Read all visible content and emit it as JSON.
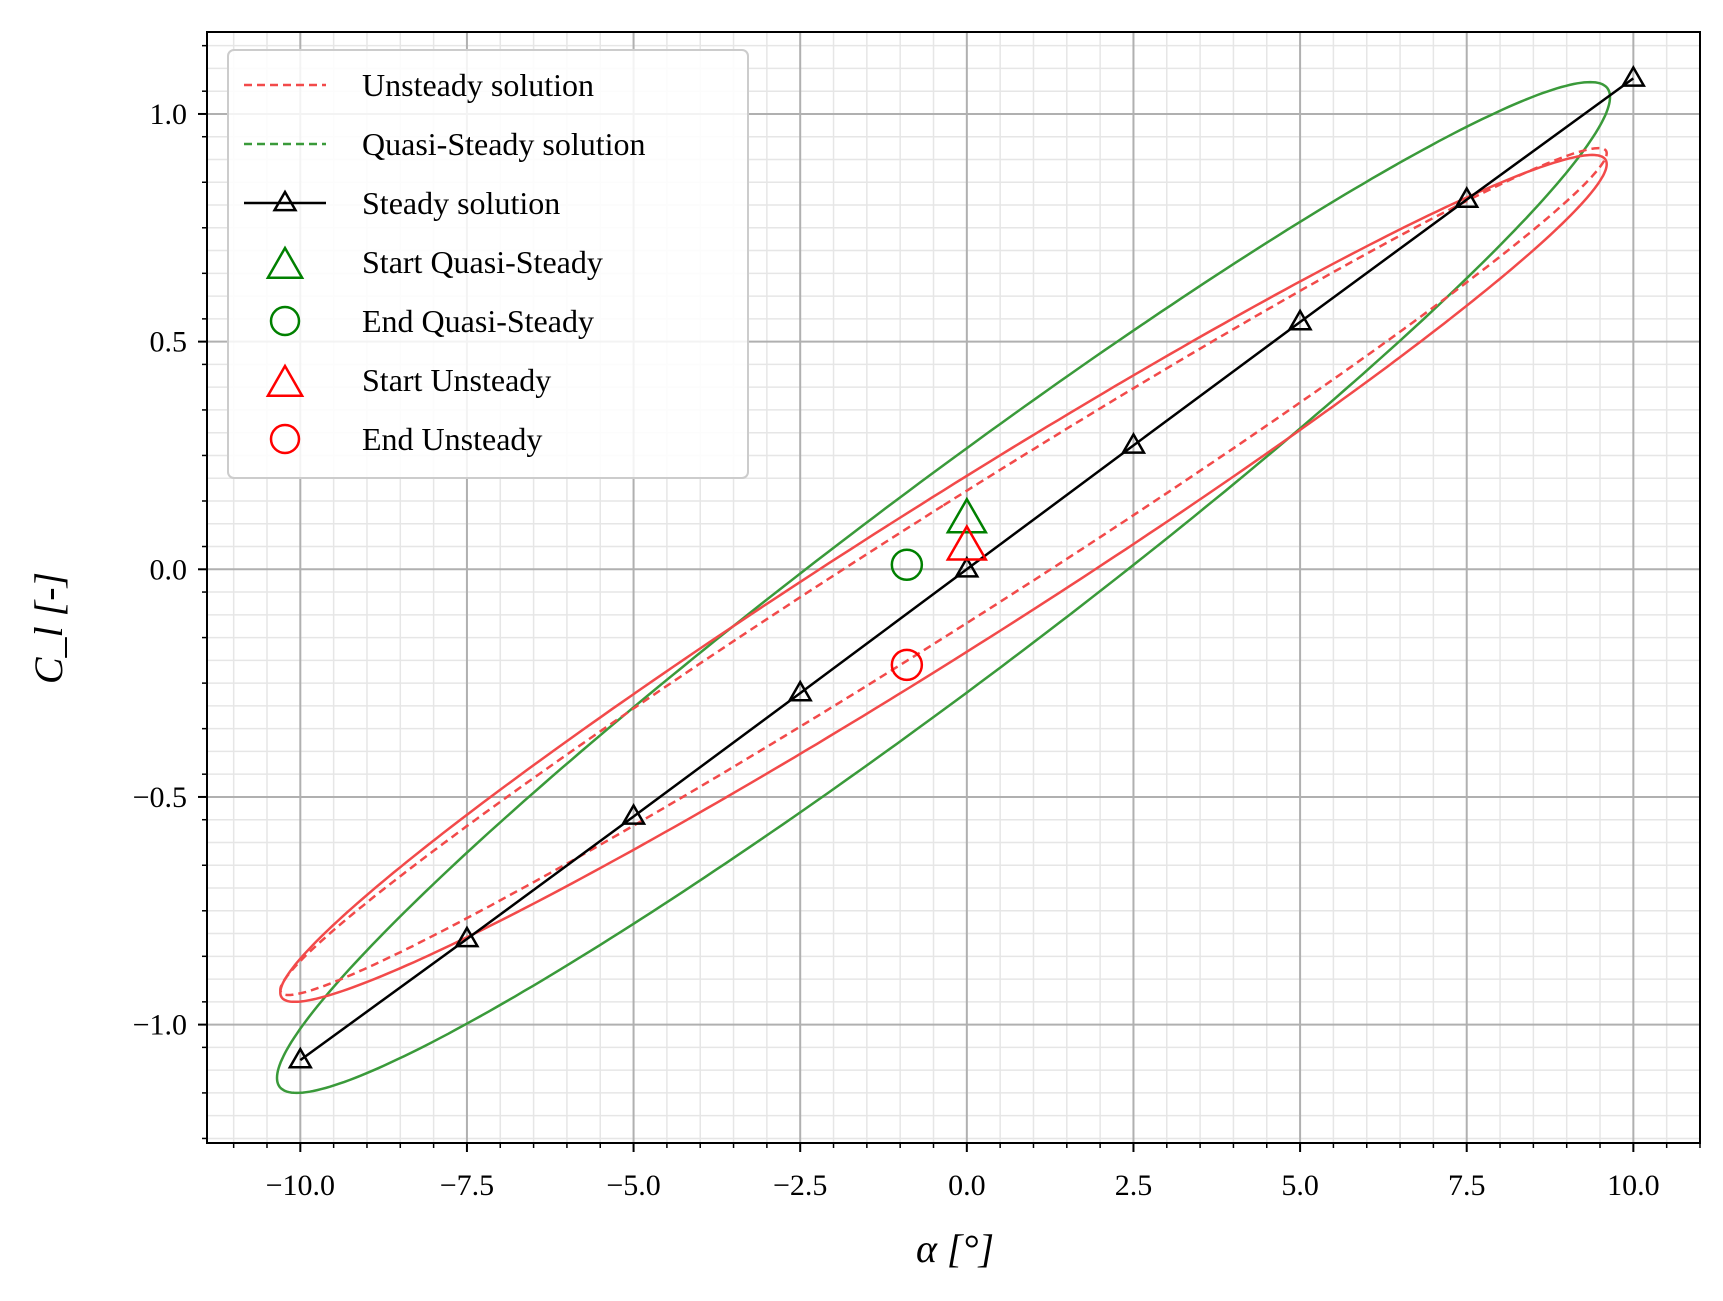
{
  "chart_data": {
    "type": "line",
    "title": "",
    "xlabel": "α [°]",
    "ylabel": "C_l [-]",
    "xlim": [
      -11.4,
      11.0
    ],
    "ylim": [
      -1.26,
      1.18
    ],
    "x_ticks": [
      -10.0,
      -7.5,
      -5.0,
      -2.5,
      0.0,
      2.5,
      5.0,
      7.5,
      10.0
    ],
    "x_tick_labels": [
      "−10.0",
      "−7.5",
      "−5.0",
      "−2.5",
      "0.0",
      "2.5",
      "5.0",
      "7.5",
      "10.0"
    ],
    "y_ticks": [
      -1.0,
      -0.5,
      0.0,
      0.5,
      1.0
    ],
    "y_tick_labels": [
      "−1.0",
      "−0.5",
      "0.0",
      "0.5",
      "1.0"
    ],
    "grid": "major and minor",
    "legend_position": "upper left",
    "series": [
      {
        "name": "Unsteady solution",
        "style": "dashed",
        "color": "#f24a4a",
        "loop": {
          "alpha_center": -0.35,
          "alpha_amplitude": 9.95,
          "cl_center": -0.02,
          "cl_amplitude": 0.93,
          "phase_lag_deg": 12
        },
        "x": [
          0.0,
          2.5,
          5.0,
          7.5,
          9.5,
          9.6,
          7.5,
          5.0,
          2.5,
          0.0,
          -2.5,
          -5.0,
          -7.5,
          -10.0,
          -10.3,
          -7.5,
          -5.0,
          -2.5,
          -0.9
        ],
        "y": [
          0.06,
          0.24,
          0.53,
          0.78,
          0.92,
          0.88,
          0.63,
          0.36,
          0.09,
          -0.11,
          -0.28,
          -0.36,
          -0.59,
          -0.86,
          -0.95,
          -0.78,
          -0.56,
          -0.36,
          -0.21
        ]
      },
      {
        "name": "Quasi-Steady solution",
        "style": "dashed",
        "color": "#3a9a3a",
        "loop": {
          "alpha_center": -0.35,
          "alpha_amplitude": 10.0,
          "cl_center": -0.04,
          "cl_amplitude": 1.11,
          "phase_lag_deg": 14
        },
        "x": [
          0.0,
          2.5,
          5.0,
          7.5,
          9.6,
          9.5,
          7.5,
          5.0,
          2.5,
          0.0,
          -2.5,
          -5.0,
          -7.5,
          -10.0,
          -10.4,
          -7.5,
          -5.0,
          -2.5,
          -0.9
        ],
        "y": [
          0.12,
          0.38,
          0.64,
          0.9,
          1.07,
          1.03,
          0.74,
          0.45,
          0.15,
          -0.11,
          -0.38,
          -0.66,
          -0.91,
          -1.1,
          -1.15,
          -0.9,
          -0.63,
          -0.37,
          0.01
        ]
      },
      {
        "name": "Steady solution",
        "style": "solid",
        "marker": "triangle",
        "color": "#000000",
        "x": [
          -10.0,
          -7.5,
          -5.0,
          -2.5,
          0.0,
          2.5,
          5.0,
          7.5,
          10.0
        ],
        "y": [
          -1.078,
          -0.812,
          -0.543,
          -0.272,
          0.0,
          0.272,
          0.543,
          0.812,
          1.078
        ]
      }
    ],
    "markers": [
      {
        "name": "Start Quasi-Steady",
        "marker": "triangle",
        "color": "#008000",
        "x": 0.0,
        "y": 0.11
      },
      {
        "name": "End Quasi-Steady",
        "marker": "circle",
        "color": "#008000",
        "x": -0.9,
        "y": 0.01
      },
      {
        "name": "Start Unsteady",
        "marker": "triangle",
        "color": "#ff0000",
        "x": 0.0,
        "y": 0.05
      },
      {
        "name": "End Unsteady",
        "marker": "circle",
        "color": "#ff0000",
        "x": -0.9,
        "y": -0.21
      }
    ]
  }
}
